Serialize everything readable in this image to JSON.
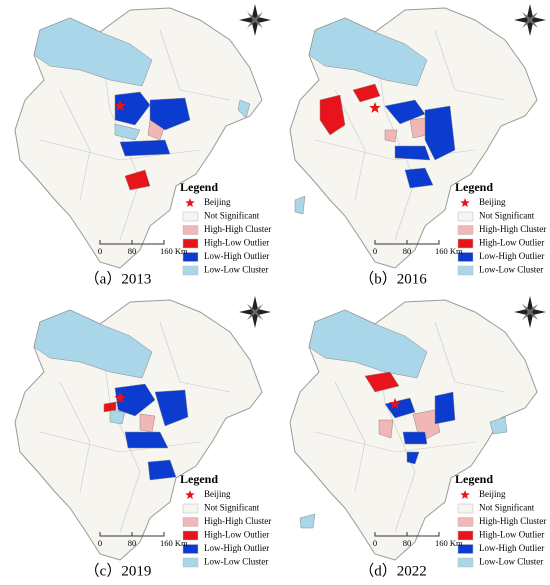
{
  "panels": [
    {
      "caption": "（a）2013"
    },
    {
      "caption": "（b）2016"
    },
    {
      "caption": "（c）2019"
    },
    {
      "caption": "（d）2022"
    }
  ],
  "legend": {
    "title": "Legend",
    "items": [
      {
        "label": "Beijing",
        "color": "#e8141b",
        "symbol": "star"
      },
      {
        "label": "Not Significant",
        "color": "#f7f5ef",
        "symbol": "box"
      },
      {
        "label": "High-High Cluster",
        "color": "#f2b6b6",
        "symbol": "box"
      },
      {
        "label": "High-Low Outlier",
        "color": "#e8141b",
        "symbol": "box"
      },
      {
        "label": "Low-High Outlier",
        "color": "#0b3ccf",
        "symbol": "box"
      },
      {
        "label": "Low-Low Cluster",
        "color": "#a9d6e8",
        "symbol": "box"
      }
    ]
  },
  "scale_bar": {
    "labels": [
      "0",
      "80",
      "160 Km"
    ]
  }
}
